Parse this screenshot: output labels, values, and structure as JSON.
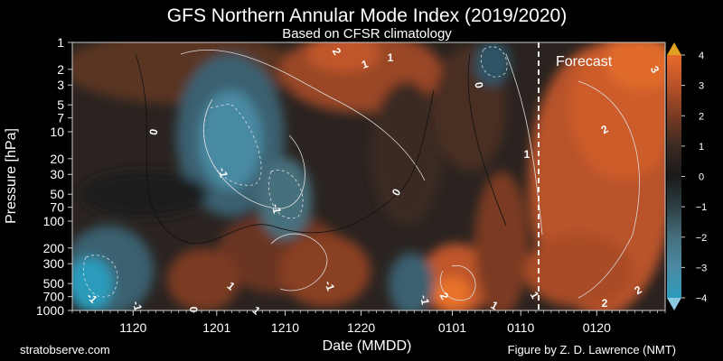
{
  "header": {
    "title": "GFS Northern Annular Mode Index (2019/2020)",
    "subtitle": "Based on CFSR climatology"
  },
  "footer": {
    "left": "stratobserve.com",
    "right": "Figure by Z. D. Lawrence (NMT)"
  },
  "chart_data": {
    "type": "heatmap",
    "title": "GFS Northern Annular Mode Index (2019/2020)",
    "subtitle": "Based on CFSR climatology",
    "xlabel": "Date (MMDD)",
    "ylabel": "Pressure [hPa]",
    "x_ticks": [
      "1120",
      "1201",
      "1210",
      "1220",
      "0101",
      "0110",
      "0120"
    ],
    "y_scale": "log",
    "y_ticks": [
      1,
      2,
      3,
      5,
      7,
      10,
      20,
      30,
      50,
      70,
      100,
      200,
      300,
      500,
      700,
      1000
    ],
    "y_tick_labels": [
      "1",
      "2",
      "3",
      "5",
      "7",
      "10",
      "20",
      "30",
      "50",
      "70",
      "100",
      "200",
      "300",
      "500",
      "700",
      "1000"
    ],
    "ylim": [
      1000,
      1
    ],
    "colorbar": {
      "ticks": [
        4,
        3,
        2,
        1,
        0,
        -1,
        -2,
        -3,
        -4
      ],
      "tick_labels": [
        "4",
        "3",
        "2",
        "1",
        "0",
        "−1",
        "−2",
        "−3",
        "−4"
      ],
      "range": [
        -4,
        4
      ],
      "colors": [
        "#2c9bbb",
        "#4a8aa3",
        "#466f7d",
        "#2d3f44",
        "#1a1a1a",
        "#3a2a22",
        "#7a3b22",
        "#b8522a",
        "#e86a2a"
      ],
      "extend_top_color": "#e0a020",
      "extend_bottom_color": "#8cc8e0"
    },
    "forecast_label": "Forecast",
    "contour_labels": [
      "0",
      "0",
      "0",
      "0",
      "-1",
      "-1",
      "-1",
      "-1",
      "-1",
      "-1",
      "1",
      "1",
      "1",
      "1",
      "1",
      "1",
      "1",
      "2",
      "2",
      "2",
      "2",
      "2",
      "3"
    ]
  }
}
